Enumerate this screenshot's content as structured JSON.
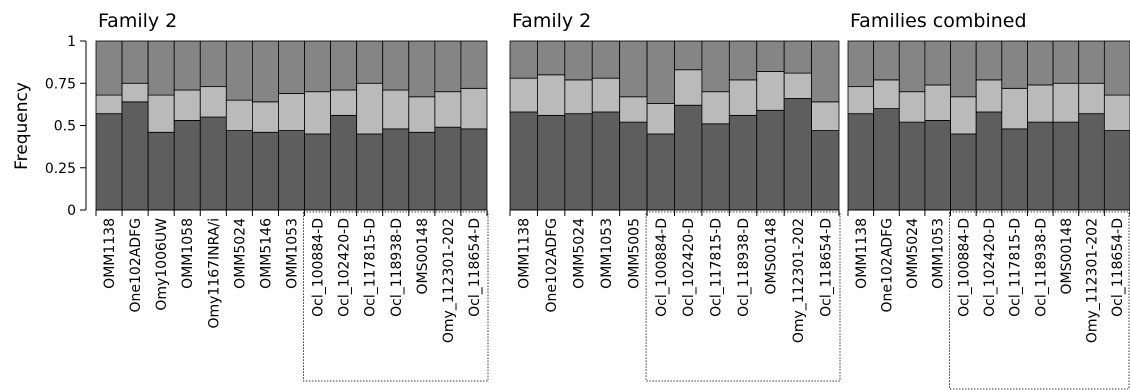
{
  "colors": {
    "bottom": "#5e5e5e",
    "middle": "#bababa",
    "top": "#858585",
    "frame": "#000000"
  },
  "y_axis": {
    "label": "Frequency",
    "ticks": [
      "0",
      "0.25",
      "0.5",
      "0.75",
      "1"
    ]
  },
  "chart_data": [
    {
      "type": "bar",
      "stacked": true,
      "title": "Family 2",
      "ylabel": "Frequency",
      "ylim": [
        0,
        1
      ],
      "categories": [
        "OMM1138",
        "One102ADFG",
        "Omy1006UW",
        "OMM1058",
        "Omy1167INRA/i",
        "OMM5024",
        "OMM5146",
        "OMM1053",
        "Ocl_100884-D",
        "Ocl_102420-D",
        "Ocl_117815-D",
        "Ocl_118938-D",
        "OMS00148",
        "Omy_112301-202",
        "Ocl_118654-D"
      ],
      "boxed_categories": [
        "Ocl_100884-D",
        "Ocl_102420-D",
        "Ocl_117815-D",
        "Ocl_118938-D",
        "OMS00148",
        "Omy_112301-202",
        "Ocl_118654-D"
      ],
      "series": [
        {
          "values": [
            0.57,
            0.64,
            0.46,
            0.53,
            0.55,
            0.47,
            0.46,
            0.47,
            0.45,
            0.56,
            0.45,
            0.48,
            0.46,
            0.49,
            0.48
          ]
        },
        {
          "values": [
            0.11,
            0.11,
            0.22,
            0.18,
            0.18,
            0.18,
            0.18,
            0.22,
            0.25,
            0.15,
            0.3,
            0.23,
            0.21,
            0.21,
            0.24
          ]
        },
        {
          "values": [
            0.32,
            0.25,
            0.32,
            0.29,
            0.27,
            0.35,
            0.36,
            0.31,
            0.3,
            0.29,
            0.25,
            0.29,
            0.33,
            0.3,
            0.28
          ]
        }
      ]
    },
    {
      "type": "bar",
      "stacked": true,
      "title": "Family 2",
      "ylim": [
        0,
        1
      ],
      "categories": [
        "OMM1138",
        "One102ADFG",
        "OMM5024",
        "OMM1053",
        "OMM5005",
        "Ocl_100884-D",
        "Ocl_102420-D",
        "Ocl_117815-D",
        "Ocl_118938-D",
        "OMS00148",
        "Omy_112301-202",
        "Ocl_118654-D"
      ],
      "boxed_categories": [
        "Ocl_100884-D",
        "Ocl_102420-D",
        "Ocl_117815-D",
        "Ocl_118938-D",
        "OMS00148",
        "Omy_112301-202",
        "Ocl_118654-D"
      ],
      "series": [
        {
          "values": [
            0.58,
            0.56,
            0.57,
            0.58,
            0.52,
            0.45,
            0.62,
            0.51,
            0.56,
            0.59,
            0.66,
            0.47
          ]
        },
        {
          "values": [
            0.2,
            0.24,
            0.2,
            0.2,
            0.15,
            0.18,
            0.21,
            0.19,
            0.21,
            0.23,
            0.15,
            0.17
          ]
        },
        {
          "values": [
            0.22,
            0.2,
            0.23,
            0.22,
            0.33,
            0.37,
            0.17,
            0.3,
            0.23,
            0.18,
            0.19,
            0.36
          ]
        }
      ]
    },
    {
      "type": "bar",
      "stacked": true,
      "title": "Families combined",
      "ylim": [
        0,
        1
      ],
      "categories": [
        "OMM1138",
        "One102ADFG",
        "OMM5024",
        "OMM1053",
        "Ocl_100884-D",
        "Ocl_102420-D",
        "Ocl_117815-D",
        "Ocl_118938-D",
        "OMS00148",
        "Omy_112301-202",
        "Ocl_118654-D"
      ],
      "boxed_categories": [
        "Ocl_100884-D",
        "Ocl_102420-D",
        "Ocl_117815-D",
        "Ocl_118938-D",
        "OMS00148",
        "Omy_112301-202",
        "Ocl_118654-D"
      ],
      "series": [
        {
          "values": [
            0.57,
            0.6,
            0.52,
            0.53,
            0.45,
            0.58,
            0.48,
            0.52,
            0.52,
            0.57,
            0.47
          ]
        },
        {
          "values": [
            0.16,
            0.17,
            0.18,
            0.21,
            0.22,
            0.19,
            0.24,
            0.22,
            0.23,
            0.18,
            0.21
          ]
        },
        {
          "values": [
            0.27,
            0.23,
            0.3,
            0.26,
            0.33,
            0.23,
            0.28,
            0.26,
            0.25,
            0.25,
            0.32
          ]
        }
      ]
    }
  ]
}
